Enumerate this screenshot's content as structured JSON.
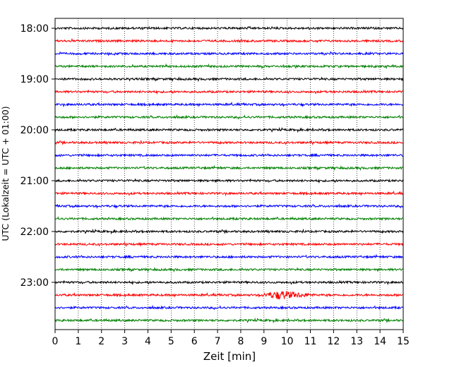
{
  "chart_data": {
    "type": "line",
    "title": "",
    "xlabel": "Zeit  [min]",
    "ylabel": "UTC (Lokalzeit = UTC + 01:00)",
    "xlim": [
      0,
      15
    ],
    "x_ticks": [
      0,
      1,
      2,
      3,
      4,
      5,
      6,
      7,
      8,
      9,
      10,
      11,
      12,
      13,
      14,
      15
    ],
    "x_tick_labels": [
      "0",
      "1",
      "2",
      "3",
      "4",
      "5",
      "6",
      "7",
      "8",
      "9",
      "10",
      "11",
      "12",
      "13",
      "14",
      "15"
    ],
    "y_tick_labels": [
      "18:00",
      "19:00",
      "20:00",
      "21:00",
      "22:00",
      "23:00"
    ],
    "grid": {
      "vertical": true,
      "style": "dotted"
    },
    "trace_colors": [
      "#000000",
      "#ff0000",
      "#0000ff",
      "#008000"
    ],
    "traces": [
      {
        "start": "18:00"
      },
      {
        "start": "18:15"
      },
      {
        "start": "18:30"
      },
      {
        "start": "18:45"
      },
      {
        "start": "19:00"
      },
      {
        "start": "19:15"
      },
      {
        "start": "19:30"
      },
      {
        "start": "19:45"
      },
      {
        "start": "20:00"
      },
      {
        "start": "20:15"
      },
      {
        "start": "20:30"
      },
      {
        "start": "20:45"
      },
      {
        "start": "21:00"
      },
      {
        "start": "21:15"
      },
      {
        "start": "21:30"
      },
      {
        "start": "21:45"
      },
      {
        "start": "22:00"
      },
      {
        "start": "22:15"
      },
      {
        "start": "22:30"
      },
      {
        "start": "22:45"
      },
      {
        "start": "23:00"
      },
      {
        "start": "23:15",
        "event": {
          "from_min": 8.8,
          "to_min": 11.2,
          "peak_min": 9.7
        }
      },
      {
        "start": "23:30"
      },
      {
        "start": "23:45"
      }
    ]
  }
}
